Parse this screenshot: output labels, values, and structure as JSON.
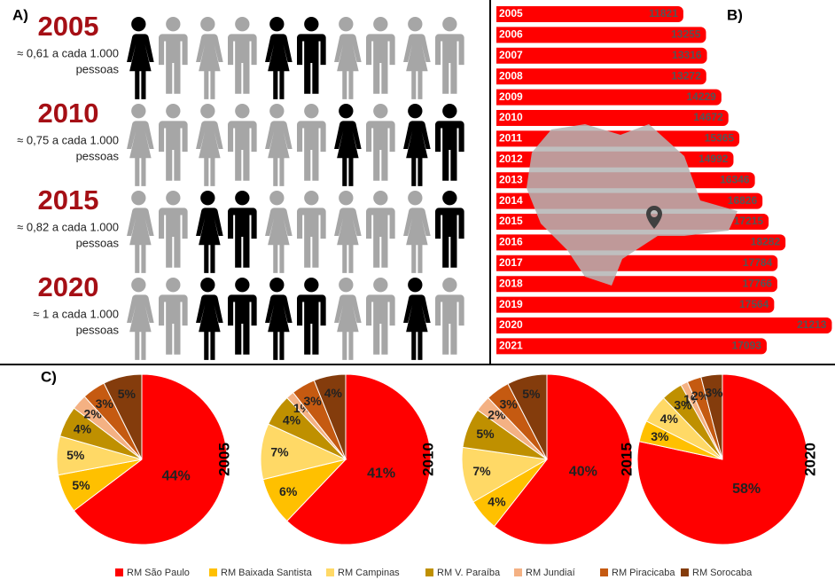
{
  "chart_data": [
    {
      "type": "pictogram",
      "label": "A)",
      "rows": [
        {
          "year": "2005",
          "text": [
            "≈ 0,61 a cada 1.000",
            "pessoas"
          ],
          "colors": [
            "#000000",
            "#a6a6a6",
            "#a6a6a6",
            "#a6a6a6",
            "#000000",
            "#000000",
            "#a6a6a6",
            "#a6a6a6",
            "#a6a6a6",
            "#a6a6a6"
          ]
        },
        {
          "year": "2010",
          "text": [
            "≈ 0,75 a cada 1.000",
            "pessoas"
          ],
          "colors": [
            "#a6a6a6",
            "#a6a6a6",
            "#a6a6a6",
            "#a6a6a6",
            "#a6a6a6",
            "#a6a6a6",
            "#000000",
            "#a6a6a6",
            "#000000",
            "#000000"
          ]
        },
        {
          "year": "2015",
          "text": [
            "≈ 0,82 a cada 1.000",
            "pessoas"
          ],
          "colors": [
            "#a6a6a6",
            "#a6a6a6",
            "#000000",
            "#000000",
            "#a6a6a6",
            "#a6a6a6",
            "#a6a6a6",
            "#a6a6a6",
            "#a6a6a6",
            "#000000"
          ]
        },
        {
          "year": "2020",
          "text": [
            "≈ 1 a cada 1.000",
            "pessoas"
          ],
          "colors": [
            "#a6a6a6",
            "#a6a6a6",
            "#000000",
            "#000000",
            "#000000",
            "#000000",
            "#a6a6a6",
            "#a6a6a6",
            "#000000",
            "#a6a6a6"
          ]
        }
      ]
    },
    {
      "type": "bar",
      "label": "B)",
      "color": "#ff0000",
      "categories": [
        "2005",
        "2006",
        "2007",
        "2008",
        "2009",
        "2010",
        "2011",
        "2012",
        "2013",
        "2014",
        "2015",
        "2016",
        "2017",
        "2018",
        "2019",
        "2020",
        "2021"
      ],
      "values": [
        11821,
        13255,
        13316,
        13272,
        14229,
        14672,
        15365,
        14992,
        16346,
        16826,
        17215,
        18282,
        17784,
        17766,
        17564,
        21213,
        17093
      ],
      "xlim": [
        0,
        21300
      ]
    },
    {
      "type": "pie",
      "label": "C)",
      "categories": [
        "RM São Paulo",
        "RM Baixada Santista",
        "RM Campinas",
        "RM V. Paraíba",
        "RM Jundiaí",
        "RM Piracicaba",
        "RM Sorocaba"
      ],
      "colors": [
        "#ff0000",
        "#ffc000",
        "#ffd966",
        "#bf9000",
        "#f4b183",
        "#c55a11",
        "#843c0c"
      ],
      "pies": [
        {
          "title": "2005",
          "values": [
            44,
            5,
            5,
            4,
            2,
            3,
            5
          ],
          "value_labels": [
            "44%",
            "5%",
            "5%",
            "4%",
            "2%",
            "3%",
            "5%"
          ]
        },
        {
          "title": "2010",
          "values": [
            41,
            6,
            7,
            4,
            1,
            3,
            4
          ],
          "value_labels": [
            "41%",
            "6%",
            "7%",
            "4%",
            "1%",
            "3%",
            "4%"
          ]
        },
        {
          "title": "2015",
          "values": [
            40,
            4,
            7,
            5,
            2,
            3,
            5
          ],
          "value_labels": [
            "40%",
            "4%",
            "7%",
            "5%",
            "2%",
            "3%",
            "5%"
          ]
        },
        {
          "title": "2020",
          "values": [
            58,
            3,
            4,
            3,
            1,
            2,
            3
          ],
          "value_labels": [
            "58%",
            "3%",
            "4%",
            "3%",
            "1%",
            "2%",
            "3%"
          ]
        }
      ]
    }
  ]
}
